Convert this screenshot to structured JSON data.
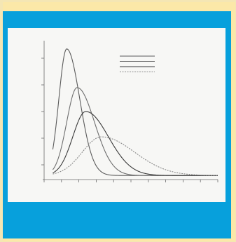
{
  "theme": {
    "frame_color": "#fbe8a8",
    "panel_color": "#07a0dc",
    "card_color": "#f7f7f5"
  },
  "chart_data": {
    "type": "line",
    "title": "",
    "xlabel": "",
    "ylabel": "",
    "xlim": [
      0,
      10
    ],
    "ylim": [
      0,
      1.0
    ],
    "x_ticks": [
      0,
      1,
      2,
      3,
      4,
      5,
      6,
      7,
      8,
      9,
      10
    ],
    "y_ticks": [
      0.1,
      0.3,
      0.5,
      0.7,
      0.9
    ],
    "legend": {
      "position": "top-right"
    },
    "series": [
      {
        "color": "#5a5a5a",
        "dash": "none",
        "peak_x": 1.3,
        "peak_y": 0.97,
        "width_left": 0.45,
        "width_right": 0.75
      },
      {
        "color": "#6e6e6e",
        "dash": "none",
        "peak_x": 1.9,
        "peak_y": 0.68,
        "width_left": 0.6,
        "width_right": 1.0
      },
      {
        "color": "#3a3a3a",
        "dash": "none",
        "peak_x": 2.4,
        "peak_y": 0.5,
        "width_left": 0.75,
        "width_right": 1.3
      },
      {
        "color": "#8a8a8a",
        "dash": "2,1.5",
        "peak_x": 3.3,
        "peak_y": 0.31,
        "width_left": 1.1,
        "width_right": 1.9
      }
    ]
  }
}
